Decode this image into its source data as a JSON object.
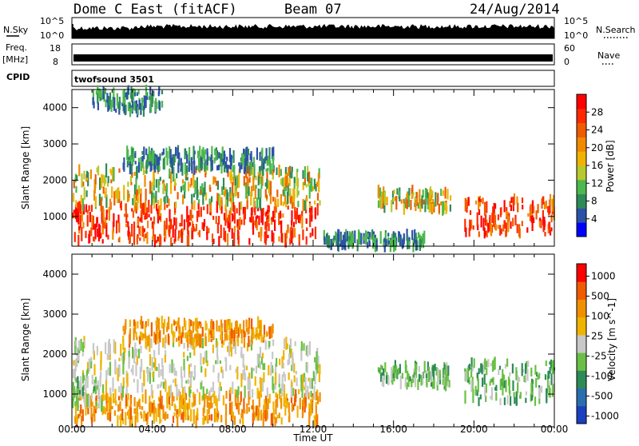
{
  "header": {
    "station": "Dome C East (fitACF)",
    "beam": "Beam 07",
    "date": "24/Aug/2014"
  },
  "sky_panel": {
    "left_label": "N.Sky",
    "right_label": "N.Search",
    "tick_top": "10^5",
    "tick_bottom": "10^0"
  },
  "freq_panel": {
    "label_line1": "Freq.",
    "label_line2": "[MHz]",
    "right_label": "Nave",
    "left_ticks": [
      "18",
      "8"
    ],
    "right_ticks": [
      "60",
      "0"
    ]
  },
  "cpid_panel": {
    "label": "CPID",
    "program": "twofsound 3501"
  },
  "chart_data": [
    {
      "type": "heatmap",
      "panel": "power",
      "ylabel": "Slant Range [km]",
      "xlabel": "Time UT",
      "x_ticks": [
        "00:00",
        "04:00",
        "08:00",
        "12:00",
        "16:00",
        "20:00",
        "00:00"
      ],
      "y_ticks": [
        1000,
        2000,
        3000,
        4000
      ],
      "ylim": [
        180,
        4500
      ],
      "xlim_hours": [
        0,
        24
      ],
      "colorbar": {
        "label": "Power [dB]",
        "ticks": [
          "4",
          "8",
          "12",
          "16",
          "20",
          "24",
          "28"
        ],
        "colors": [
          "#0000ff",
          "#2c52a8",
          "#2e8b57",
          "#4db84d",
          "#b7c92e",
          "#f0b400",
          "#f08a00",
          "#f05a00",
          "#ff2a00",
          "#ff0000"
        ]
      },
      "data_regions": [
        {
          "t0": 0.0,
          "t1": 12.3,
          "r0": 300,
          "r1": 1300,
          "level": "high"
        },
        {
          "t0": 0.0,
          "t1": 12.3,
          "r0": 1300,
          "r1": 2300,
          "level": "medium"
        },
        {
          "t0": 2.5,
          "t1": 10.0,
          "r0": 2300,
          "r1": 2800,
          "level": "low"
        },
        {
          "t0": 1.0,
          "t1": 4.5,
          "r0": 3900,
          "r1": 4500,
          "level": "low"
        },
        {
          "t0": 15.2,
          "t1": 18.8,
          "r0": 1200,
          "r1": 1700,
          "level": "medium"
        },
        {
          "t0": 12.5,
          "t1": 17.5,
          "r0": 200,
          "r1": 500,
          "level": "low"
        },
        {
          "t0": 19.5,
          "t1": 24.0,
          "r0": 500,
          "r1": 1500,
          "level": "high"
        }
      ]
    },
    {
      "type": "heatmap",
      "panel": "velocity",
      "ylabel": "Slant Range [km]",
      "xlabel": "Time UT",
      "x_ticks": [
        "00:00",
        "04:00",
        "08:00",
        "12:00",
        "16:00",
        "20:00",
        "00:00"
      ],
      "y_ticks": [
        1000,
        2000,
        3000,
        4000
      ],
      "ylim": [
        180,
        4500
      ],
      "xlim_hours": [
        0,
        24
      ],
      "colorbar": {
        "label": "Velocity [m s^-1]",
        "ticks": [
          "1000",
          "500",
          "100",
          "25",
          "-25",
          "-100",
          "-500",
          "-1000"
        ],
        "colors": [
          "#1a3fbf",
          "#2a6eb0",
          "#2e8b57",
          "#6ac045",
          "#c8c8c8",
          "#f0b400",
          "#f09000",
          "#f05a00",
          "#ff0000"
        ]
      },
      "data_regions": [
        {
          "t0": 0.0,
          "t1": 12.3,
          "r0": 300,
          "r1": 1000,
          "level": "orange"
        },
        {
          "t0": 0.0,
          "t1": 12.3,
          "r0": 1000,
          "r1": 2300,
          "level": "grey"
        },
        {
          "t0": 0.0,
          "t1": 1.5,
          "r0": 700,
          "r1": 1400,
          "level": "green"
        },
        {
          "t0": 2.5,
          "t1": 10.0,
          "r0": 2300,
          "r1": 2800,
          "level": "orange"
        },
        {
          "t0": 15.2,
          "t1": 18.8,
          "r0": 1200,
          "r1": 1700,
          "level": "green"
        },
        {
          "t0": 19.5,
          "t1": 24.0,
          "r0": 800,
          "r1": 1800,
          "level": "green"
        }
      ]
    }
  ]
}
